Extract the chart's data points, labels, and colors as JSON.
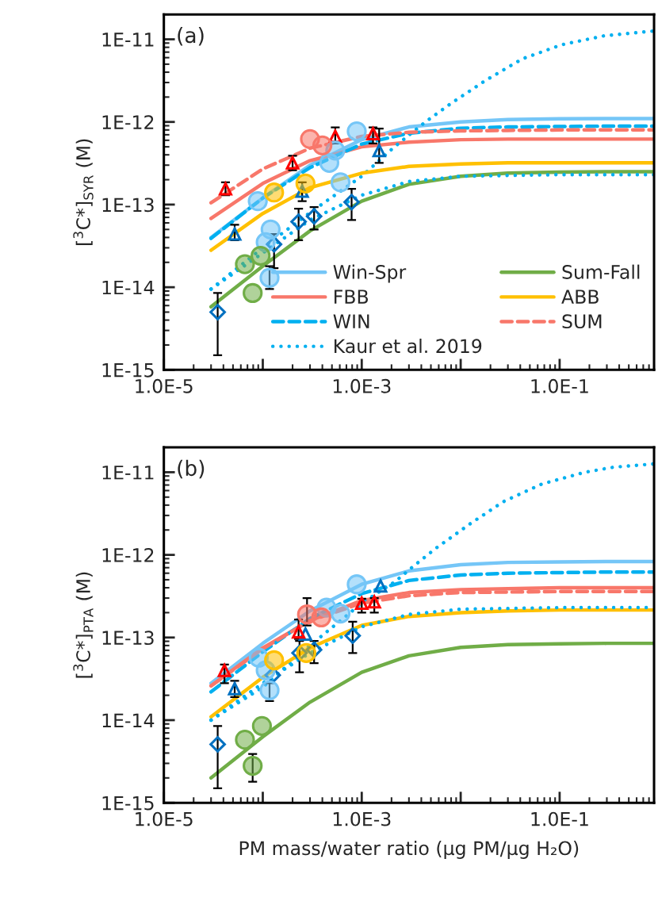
{
  "chart_data": [
    {
      "type": "line",
      "ylabel": "[$^{3}$C*]$_{SYR}$ (M)",
      "annotations": [
        "(a)"
      ],
      "log": "xy",
      "legend": "bottom right",
      "marker": "none",
      "xlim": [
        1e-05,
        0.9
      ],
      "ylim": [
        1e-15,
        2e-11
      ],
      "xticks": [
        {
          "value": 1e-05,
          "label": "1.0E-5"
        },
        {
          "value": 0.0001,
          "label": null
        },
        {
          "value": 0.001,
          "label": "1.0E-3"
        },
        {
          "value": 0.01,
          "label": null
        },
        {
          "value": 0.1,
          "label": "1.0E-1"
        }
      ],
      "yticks": [
        {
          "value": 1e-15,
          "label": "1E-15"
        },
        {
          "value": 1e-14,
          "label": "1E-14"
        },
        {
          "value": 1e-13,
          "label": "1E-13"
        },
        {
          "value": 1e-12,
          "label": "1E-12"
        },
        {
          "value": 1e-11,
          "label": "1E-11"
        }
      ],
      "series": [
        {
          "name": "Win-Spr",
          "color": "#75c6f7",
          "line_style": "solid",
          "x": [
            3e-05,
            0.0001,
            0.0003,
            0.001,
            0.003,
            0.01,
            0.03,
            0.1,
            0.3,
            0.9
          ],
          "values": [
            4e-14,
            1.2e-13,
            3e-13,
            6.1e-13,
            8.7e-13,
            1e-12,
            1.07e-12,
            1.09e-12,
            1.1e-12,
            1.1e-12
          ]
        },
        {
          "name": "FBB",
          "color": "#f8776a",
          "line_style": "solid",
          "x": [
            3e-05,
            0.0001,
            0.0003,
            0.001,
            0.003,
            0.01,
            0.03,
            0.1,
            0.3,
            0.9
          ],
          "values": [
            6.8e-14,
            1.8e-13,
            3.4e-13,
            5e-13,
            5.7e-13,
            6.1e-13,
            6.2e-13,
            6.2e-13,
            6.2e-13,
            6.2e-13
          ]
        },
        {
          "name": "WIN",
          "color": "#00b0f0",
          "line_style": "dashed",
          "x": [
            3e-05,
            0.0001,
            0.0003,
            0.001,
            0.003,
            0.01,
            0.03,
            0.1,
            0.3,
            0.9
          ],
          "values": [
            3.9e-14,
            1.2e-13,
            2.8e-13,
            5.4e-13,
            7.3e-13,
            8.4e-13,
            8.7e-13,
            8.8e-13,
            8.9e-13,
            8.9e-13
          ]
        },
        {
          "name": "Kaur et al. 2019",
          "color": "#00b0f0",
          "line_style": "dotted",
          "x": [
            3e-05,
            0.0001,
            0.0003,
            0.001,
            0.0021,
            0.0044,
            0.0079,
            0.018,
            0.042,
            0.105,
            0.28,
            0.9
          ],
          "values": [
            9.5e-15,
            3e-14,
            8e-14,
            2.2e-13,
            4.9e-13,
            1e-12,
            1.66e-12,
            3.2e-12,
            5.8e-12,
            8.6e-12,
            1.1e-11,
            1.26e-11
          ]
        },
        {
          "name": "Sum-Fall",
          "color": "#70ad47",
          "line_style": "solid",
          "x": [
            3e-05,
            0.0001,
            0.0003,
            0.001,
            0.003,
            0.01,
            0.03,
            0.1,
            0.3,
            0.9
          ],
          "values": [
            5.8e-15,
            1.8e-14,
            4.8e-14,
            1.1e-13,
            1.76e-13,
            2.2e-13,
            2.4e-13,
            2.47e-13,
            2.5e-13,
            2.5e-13
          ]
        },
        {
          "name": "ABB",
          "color": "#ffc000",
          "line_style": "solid",
          "x": [
            3e-05,
            0.0001,
            0.0003,
            0.001,
            0.003,
            0.01,
            0.03,
            0.1,
            0.3,
            0.9
          ],
          "values": [
            2.8e-14,
            7.8e-14,
            1.6e-13,
            2.4e-13,
            2.9e-13,
            3.1e-13,
            3.2e-13,
            3.2e-13,
            3.2e-13,
            3.2e-13
          ]
        },
        {
          "name": "SUM",
          "color": "#f8776a",
          "line_style": "dashed",
          "x": [
            3e-05,
            0.0001,
            0.0003,
            0.001,
            0.003,
            0.01,
            0.03,
            0.1,
            0.3,
            0.9
          ],
          "values": [
            1.05e-13,
            2.7e-13,
            4.8e-13,
            6.7e-13,
            7.5e-13,
            7.8e-13,
            7.9e-13,
            8e-13,
            8e-13,
            8e-13
          ]
        },
        {
          "color": "#00b0f0",
          "line_style": "dotted",
          "x": [
            3e-05,
            0.0001,
            0.0003,
            0.001,
            0.003,
            0.01,
            0.1,
            0.9
          ],
          "values": [
            9.5e-15,
            2.6e-14,
            6.5e-14,
            1.3e-13,
            1.9e-13,
            2.2e-13,
            2.3e-13,
            2.3e-13
          ]
        },
        {
          "type": "scatter",
          "marker": "diamond",
          "color": "#0070c0",
          "x": [
            3.5e-05,
            0.00013,
            0.00023,
            0.00033,
            0.00079
          ],
          "values": [
            5e-15,
            3.3e-14,
            6.2e-14,
            7.2e-14,
            1.07e-13
          ],
          "errors": [
            [
              1.5e-15,
              8.5e-15
            ],
            [
              1.7e-14,
              4.4e-14
            ],
            [
              3.7e-14,
              8.9e-14
            ],
            [
              5e-14,
              9.3e-14
            ],
            [
              6.5e-14,
              1.55e-13
            ]
          ]
        },
        {
          "type": "scatter",
          "marker": "triangle",
          "color": "#0070c0",
          "x": [
            5.2e-05,
            0.00025,
            0.0015
          ],
          "values": [
            4.4e-14,
            1.45e-13,
            4.5e-13
          ],
          "errors": [
            [
              3.7e-14,
              5.7e-14
            ],
            [
              1.1e-13,
              1.86e-13
            ],
            [
              3.2e-13,
              8.3e-13
            ]
          ]
        },
        {
          "type": "scatter",
          "marker": "triangle",
          "color": "#ff0000",
          "x": [
            4.2e-05,
            0.0002,
            0.00054,
            0.0013
          ],
          "values": [
            1.55e-13,
            3.2e-13,
            6.7e-13,
            7.2e-13
          ],
          "errors": [
            [
              1.3e-13,
              1.86e-13
            ],
            [
              2.6e-13,
              3.9e-13
            ],
            [
              5.5e-13,
              8.6e-13
            ],
            [
              5.5e-13,
              8.6e-13
            ]
          ]
        },
        {
          "type": "scatter",
          "marker": "circle",
          "color": "#75c6f7",
          "x": [
            8.9e-05,
            0.00012,
            0.000107,
            0.000117,
            0.00047,
            0.00061,
            0.00089,
            0.00054
          ],
          "values": [
            1.1e-13,
            5e-14,
            3.5e-14,
            1.3e-14,
            3.2e-13,
            1.86e-13,
            7.7e-13,
            4.5e-13
          ],
          "errors": [
            null,
            null,
            null,
            [
              9.5e-15,
              1.8e-14
            ],
            null,
            null,
            null,
            null
          ]
        },
        {
          "type": "scatter",
          "marker": "circle",
          "color": "#f8776a",
          "x": [
            0.0003,
            0.0004
          ],
          "values": [
            6.2e-13,
            5.2e-13
          ]
        },
        {
          "type": "scatter",
          "marker": "circle",
          "color": "#ffc000",
          "x": [
            0.00013,
            0.00027
          ],
          "values": [
            1.4e-13,
            1.8e-13
          ]
        },
        {
          "type": "scatter",
          "marker": "circle",
          "color": "#70ad47",
          "x": [
            6.6e-05,
            9.5e-05,
            7.9e-05
          ],
          "values": [
            1.9e-14,
            2.4e-14,
            8.5e-15
          ]
        }
      ]
    },
    {
      "type": "line",
      "xlabel": "PM mass/water ratio (μg PM/μg H₂O)",
      "ylabel": "[$^{3}$C*]$_{PTA}$ (M)",
      "annotations": [
        "(b)"
      ],
      "log": "xy",
      "marker": "none",
      "xlim": [
        1e-05,
        0.9
      ],
      "ylim": [
        1e-15,
        2e-11
      ],
      "xticks": [
        {
          "value": 1e-05,
          "label": "1.0E-5"
        },
        {
          "value": 0.0001,
          "label": null
        },
        {
          "value": 0.001,
          "label": "1.0E-3"
        },
        {
          "value": 0.01,
          "label": null
        },
        {
          "value": 0.1,
          "label": "1.0E-1"
        }
      ],
      "yticks": [
        {
          "value": 1e-15,
          "label": "1E-15"
        },
        {
          "value": 1e-14,
          "label": "1E-14"
        },
        {
          "value": 1e-13,
          "label": "1E-13"
        },
        {
          "value": 1e-12,
          "label": "1E-12"
        },
        {
          "value": 1e-11,
          "label": "1E-11"
        }
      ],
      "series": [
        {
          "color": "#75c6f7",
          "line_style": "solid",
          "x": [
            3e-05,
            0.0001,
            0.0003,
            0.001,
            0.003,
            0.01,
            0.03,
            0.1,
            0.3,
            0.9
          ],
          "values": [
            2.8e-14,
            8.5e-14,
            2.1e-13,
            4.4e-13,
            6.4e-13,
            7.6e-13,
            8.1e-13,
            8.2e-13,
            8.3e-13,
            8.3e-13
          ]
        },
        {
          "color": "#f8776a",
          "line_style": "solid",
          "x": [
            3e-05,
            0.0001,
            0.0003,
            0.001,
            0.003,
            0.01,
            0.03,
            0.1,
            0.3,
            0.9
          ],
          "values": [
            2.6e-14,
            7.5e-14,
            1.6e-13,
            2.8e-13,
            3.5e-13,
            3.8e-13,
            3.9e-13,
            4e-13,
            4e-13,
            4e-13
          ]
        },
        {
          "color": "#00b0f0",
          "line_style": "dashed",
          "x": [
            3e-05,
            0.0001,
            0.0003,
            0.001,
            0.003,
            0.01,
            0.03,
            0.1,
            0.3,
            0.9
          ],
          "values": [
            2.2e-14,
            6.7e-14,
            1.7e-13,
            3.4e-13,
            4.9e-13,
            5.7e-13,
            6e-13,
            6.1e-13,
            6.2e-13,
            6.2e-13
          ]
        },
        {
          "color": "#00b0f0",
          "line_style": "dotted",
          "x": [
            3e-05,
            0.0001,
            0.0003,
            0.001,
            0.0022,
            0.0032,
            0.0056,
            0.0126,
            0.027,
            0.066,
            0.18,
            0.35,
            0.9
          ],
          "values": [
            1e-14,
            2.5e-14,
            8e-14,
            2.6e-13,
            4.8e-13,
            7e-13,
            1.2e-12,
            2.4e-12,
            4.4e-12,
            7.2e-12,
            1e-11,
            1.15e-11,
            1.26e-11
          ]
        },
        {
          "color": "#70ad47",
          "line_style": "solid",
          "x": [
            3e-05,
            0.0001,
            0.0003,
            0.001,
            0.003,
            0.01,
            0.03,
            0.1,
            0.3,
            0.9
          ],
          "values": [
            2e-15,
            6.3e-15,
            1.65e-14,
            3.8e-14,
            6e-14,
            7.6e-14,
            8.2e-14,
            8.4e-14,
            8.5e-14,
            8.5e-14
          ]
        },
        {
          "color": "#ffc000",
          "line_style": "solid",
          "x": [
            3e-05,
            0.0001,
            0.0003,
            0.001,
            0.003,
            0.01,
            0.03,
            0.1,
            0.3,
            0.9
          ],
          "values": [
            1.1e-14,
            3.3e-14,
            7.5e-14,
            1.4e-13,
            1.8e-13,
            2e-13,
            2.1e-13,
            2.15e-13,
            2.15e-13,
            2.15e-13
          ]
        },
        {
          "color": "#f8776a",
          "line_style": "dashed",
          "x": [
            3e-05,
            0.0001,
            0.0003,
            0.001,
            0.003,
            0.01,
            0.03,
            0.1,
            0.3,
            0.9
          ],
          "values": [
            2.6e-14,
            7.3e-14,
            1.6e-13,
            2.6e-13,
            3.2e-13,
            3.5e-13,
            3.55e-13,
            3.6e-13,
            3.6e-13,
            3.6e-13
          ]
        },
        {
          "color": "#00b0f0",
          "line_style": "dotted",
          "x": [
            3e-05,
            0.0001,
            0.0003,
            0.001,
            0.003,
            0.01,
            0.1,
            0.9
          ],
          "values": [
            1e-14,
            2.8e-14,
            6.5e-14,
            1.35e-13,
            1.9e-13,
            2.2e-13,
            2.3e-13,
            2.3e-13
          ]
        },
        {
          "type": "scatter",
          "marker": "diamond",
          "color": "#0070c0",
          "x": [
            3.5e-05,
            0.000126,
            0.000235,
            0.00033,
            0.00081
          ],
          "values": [
            5.1e-15,
            3.5e-14,
            6.5e-14,
            7.1e-14,
            1.05e-13
          ],
          "errors": [
            [
              1.5e-15,
              8.5e-15
            ],
            null,
            [
              3.8e-14,
              9.1e-14
            ],
            [
              4.9e-14,
              9.1e-14
            ],
            [
              6.5e-14,
              1.55e-13
            ]
          ]
        },
        {
          "type": "scatter",
          "marker": "triangle",
          "color": "#0070c0",
          "x": [
            5.2e-05,
            0.00027,
            0.00155
          ],
          "values": [
            2.4e-14,
            1.1e-13,
            4.2e-13
          ],
          "errors": [
            [
              1.9e-14,
              3e-14
            ],
            null,
            null
          ]
        },
        {
          "type": "scatter",
          "marker": "triangle",
          "color": "#ff0000",
          "x": [
            4.1e-05,
            0.00023,
            0.001,
            0.00134
          ],
          "values": [
            4e-14,
            1.17e-13,
            2.6e-13,
            2.7e-13
          ],
          "errors": [
            [
              2.8e-14,
              4.7e-14
            ],
            [
              9.6e-14,
              1.65e-13
            ],
            [
              2e-13,
              2.95e-13
            ],
            [
              2e-13,
              3e-13
            ]
          ]
        },
        {
          "type": "scatter",
          "marker": "circle",
          "color": "#75c6f7",
          "x": [
            9.1e-05,
            0.000107,
            0.000117,
            0.00044,
            0.00061,
            0.00089
          ],
          "values": [
            5.7e-14,
            4e-14,
            2.3e-14,
            2.3e-13,
            1.95e-13,
            4.4e-13
          ],
          "errors": [
            null,
            null,
            [
              1.7e-14,
              2.8e-14
            ],
            null,
            null,
            null
          ]
        },
        {
          "type": "scatter",
          "marker": "circle",
          "color": "#f8776a",
          "x": [
            0.00028,
            0.00039
          ],
          "values": [
            1.9e-13,
            1.75e-13
          ],
          "errors": [
            [
              1.4e-13,
              3e-13
            ],
            null
          ]
        },
        {
          "type": "scatter",
          "marker": "circle",
          "color": "#ffc000",
          "x": [
            0.00013,
            0.000275
          ],
          "values": [
            5.3e-14,
            6.5e-14
          ]
        },
        {
          "type": "scatter",
          "marker": "circle",
          "color": "#70ad47",
          "x": [
            6.6e-05,
            9.8e-05,
            7.9e-05
          ],
          "values": [
            5.8e-15,
            8.5e-15,
            2.8e-15
          ],
          "errors": [
            null,
            null,
            [
              1.8e-15,
              3.9e-15
            ]
          ]
        }
      ]
    }
  ]
}
